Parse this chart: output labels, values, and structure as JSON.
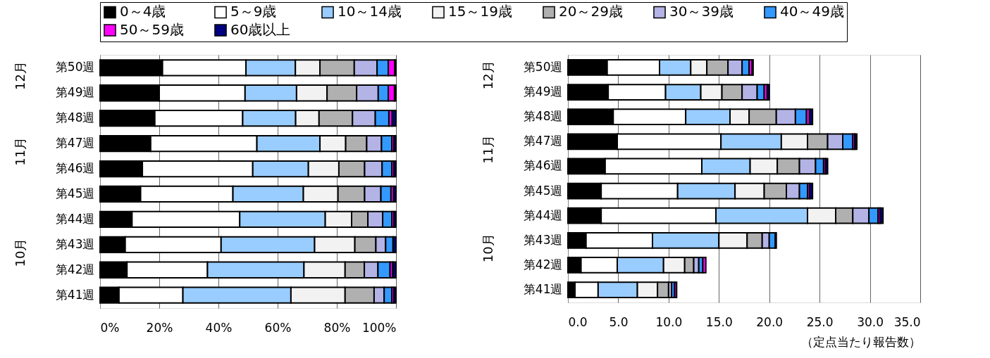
{
  "chart_data": [
    {
      "type": "bar",
      "orientation": "horizontal",
      "stacked": true,
      "legend": "top",
      "grid": "x",
      "categories": [
        "第50週",
        "第49週",
        "第48週",
        "第47週",
        "第46週",
        "第45週",
        "第44週",
        "第43週",
        "第42週",
        "第41週"
      ],
      "series": [
        {
          "name": "0～4歳",
          "color": "#000000",
          "values": [
            21.1,
            20.0,
            18.5,
            17.1,
            14.3,
            13.7,
            10.8,
            8.5,
            9.1,
            6.4
          ]
        },
        {
          "name": "5～9歳",
          "color": "#ffffff",
          "values": [
            28.2,
            29.0,
            29.7,
            35.9,
            37.3,
            31.2,
            36.4,
            32.4,
            27.2,
            21.6
          ]
        },
        {
          "name": "10～14歳",
          "color": "#99ccff",
          "values": [
            16.7,
            17.4,
            17.9,
            21.3,
            18.8,
            23.8,
            28.9,
            31.6,
            32.6,
            36.5
          ]
        },
        {
          "name": "15～19歳",
          "color": "#f2f2f2",
          "values": [
            8.3,
            10.3,
            7.9,
            8.7,
            10.3,
            11.7,
            8.9,
            13.6,
            13.9,
            18.3
          ]
        },
        {
          "name": "20～29歳",
          "color": "#b0b0b0",
          "values": [
            11.6,
            10.0,
            11.3,
            7.1,
            8.7,
            9.0,
            5.5,
            7.1,
            6.5,
            9.8
          ]
        },
        {
          "name": "30～39歳",
          "color": "#b3b3e6",
          "values": [
            7.7,
            7.3,
            7.7,
            5.0,
            5.9,
            5.5,
            5.0,
            3.3,
            4.6,
            3.4
          ]
        },
        {
          "name": "40～49歳",
          "color": "#3399ff",
          "values": [
            3.8,
            3.4,
            4.6,
            3.5,
            3.3,
            3.4,
            3.1,
            2.5,
            4.1,
            2.6
          ]
        },
        {
          "name": "50～59歳",
          "color": "#ff00ff",
          "values": [
            2.2,
            2.1,
            1.1,
            0.7,
            0.7,
            0.9,
            0.7,
            null,
            0.9,
            0.7
          ]
        },
        {
          "name": "60歳以上",
          "color": "#000080",
          "values": [
            0.4,
            0.5,
            1.3,
            0.7,
            0.7,
            0.8,
            0.7,
            1.0,
            1.1,
            0.7
          ]
        }
      ],
      "xlim": [
        0,
        100
      ],
      "xticks": [
        {
          "value": 0,
          "label": "0%"
        },
        {
          "value": 20,
          "label": "20%"
        },
        {
          "value": 40,
          "label": "40%"
        },
        {
          "value": 60,
          "label": "60%"
        },
        {
          "value": 80,
          "label": "80%"
        },
        {
          "value": 100,
          "label": "100%"
        }
      ],
      "annotations": [
        "12月",
        "11月",
        "10月"
      ]
    },
    {
      "type": "bar",
      "orientation": "horizontal",
      "stacked": true,
      "legend": "top",
      "grid": "x",
      "xlabel": "（定点当たり報告数）",
      "categories": [
        "第50週",
        "第49週",
        "第48週",
        "第47週",
        "第46週",
        "第45週",
        "第44週",
        "第43週",
        "第42週",
        "第41週"
      ],
      "series": [
        {
          "name": "0～4歳",
          "color": "#000000",
          "values": [
            3.9,
            4.0,
            4.5,
            4.9,
            3.7,
            3.3,
            3.3,
            1.8,
            1.3,
            0.7
          ]
        },
        {
          "name": "5～9歳",
          "color": "#ffffff",
          "values": [
            5.2,
            5.7,
            7.2,
            10.3,
            9.6,
            7.6,
            11.4,
            6.6,
            3.6,
            2.3
          ]
        },
        {
          "name": "10～14歳",
          "color": "#99ccff",
          "values": [
            3.1,
            3.5,
            4.4,
            6.0,
            4.8,
            5.7,
            9.1,
            6.6,
            4.6,
            3.9
          ]
        },
        {
          "name": "15～19歳",
          "color": "#f2f2f2",
          "values": [
            1.6,
            2.1,
            1.9,
            2.6,
            2.7,
            2.9,
            2.8,
            2.8,
            2.1,
            2.0
          ]
        },
        {
          "name": "20～29歳",
          "color": "#b0b0b0",
          "values": [
            2.1,
            2.0,
            2.7,
            2.0,
            2.2,
            2.2,
            1.7,
            1.5,
            0.9,
            1.1
          ]
        },
        {
          "name": "30～39歳",
          "color": "#b3b3e6",
          "values": [
            1.4,
            1.5,
            1.9,
            1.5,
            1.6,
            1.3,
            1.6,
            0.7,
            0.5,
            0.3
          ]
        },
        {
          "name": "40～49歳",
          "color": "#3399ff",
          "values": [
            0.7,
            0.7,
            1.1,
            1.0,
            0.8,
            0.8,
            0.9,
            0.6,
            0.4,
            0.3
          ]
        },
        {
          "name": "50～59歳",
          "color": "#ff00ff",
          "values": [
            0.3,
            0.3,
            0.3,
            0.2,
            0.2,
            0.2,
            0.2,
            0.1,
            0.3,
            0.2
          ]
        },
        {
          "name": "60歳以上",
          "color": "#000080",
          "values": [
            0.1,
            0.2,
            0.3,
            0.2,
            0.2,
            0.3,
            0.3,
            null,
            null,
            null
          ]
        }
      ],
      "xlim": [
        0,
        35
      ],
      "xticks": [
        {
          "value": 0,
          "label": "0.0"
        },
        {
          "value": 5,
          "label": "5.0"
        },
        {
          "value": 10,
          "label": "10.0"
        },
        {
          "value": 15,
          "label": "15.0"
        },
        {
          "value": 20,
          "label": "20.0"
        },
        {
          "value": 25,
          "label": "25.0"
        },
        {
          "value": 30,
          "label": "30.0"
        },
        {
          "value": 35,
          "label": "35.0"
        }
      ],
      "annotations": [
        "12月",
        "11月",
        "10月"
      ]
    }
  ]
}
